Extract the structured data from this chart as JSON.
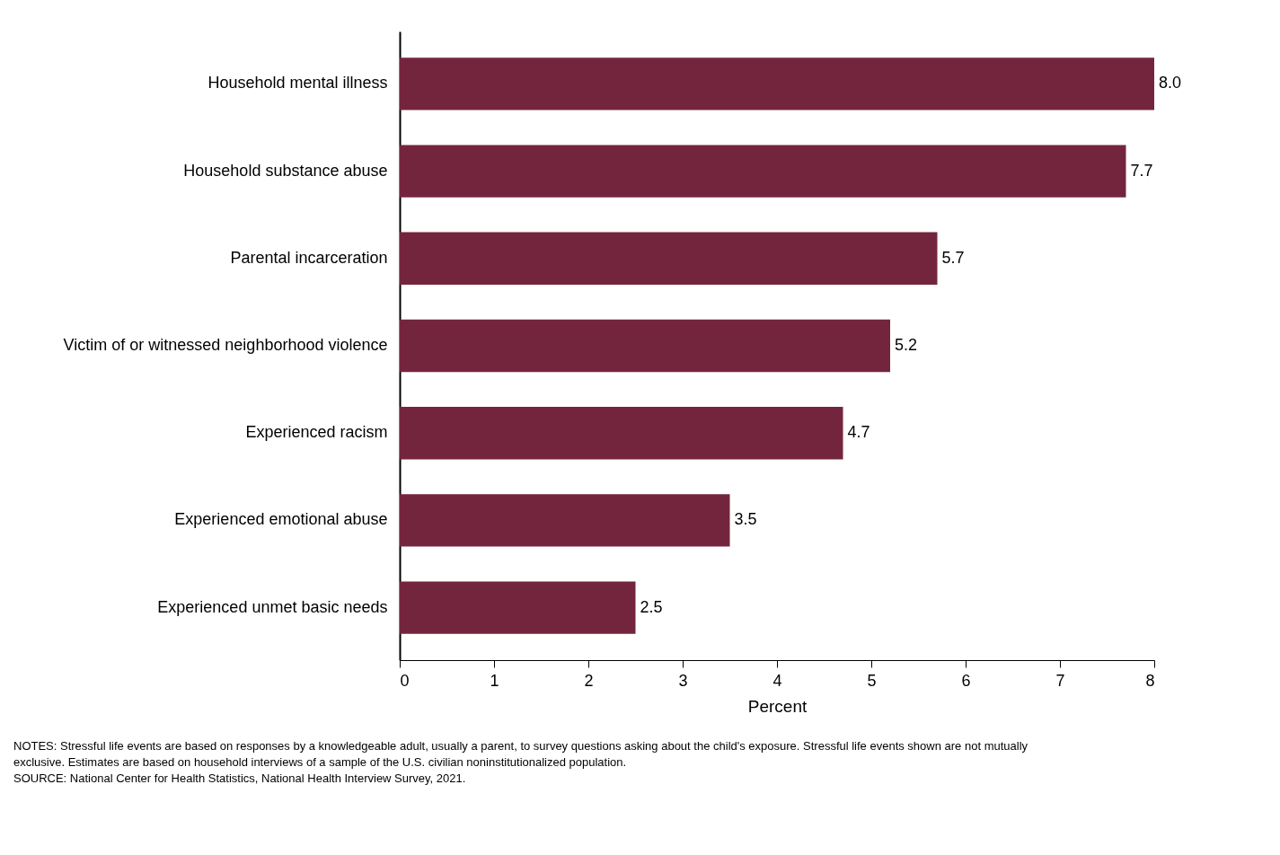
{
  "chart_data": {
    "type": "bar",
    "orientation": "horizontal",
    "xlabel": "Percent",
    "categories": [
      "Household mental illness",
      "Household substance abuse",
      "Parental incarceration",
      "Victim of or witnessed neighborhood violence",
      "Experienced racism",
      "Experienced emotional abuse",
      "Experienced unmet basic needs"
    ],
    "values": [
      8.0,
      7.7,
      5.7,
      5.2,
      4.7,
      3.5,
      2.5
    ],
    "color": "#74253e",
    "xlim": [
      0,
      8
    ],
    "xticks": [
      0,
      1,
      2,
      3,
      4,
      5,
      6,
      7,
      8
    ],
    "value_labels": [
      "8.0",
      "7.7",
      "5.7",
      "5.2",
      "4.7",
      "3.5",
      "2.5"
    ],
    "grid": false,
    "annotations": [
      "NOTES: Stressful life events are based on responses by a knowledgeable adult, usually a parent, to survey questions asking about the child's exposure. Stressful life events shown are not mutually exclusive. Estimates are based on household interviews of a sample of the U.S. civilian noninstitutionalized population.",
      "SOURCE: National Center for Health Statistics, National Health Interview Survey, 2021."
    ]
  }
}
